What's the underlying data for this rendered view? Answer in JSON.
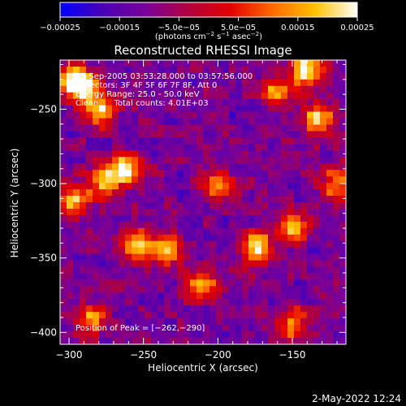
{
  "chart_data": {
    "type": "heatmap",
    "title": "Reconstructed RHESSI Image",
    "xlabel": "Heliocentric X (arcsec)",
    "ylabel": "Heliocentric Y (arcsec)",
    "xlim": [
      -306,
      -114
    ],
    "ylim": [
      -408,
      -217
    ],
    "xticks": [
      -300,
      -250,
      -200,
      -150
    ],
    "xtick_labels": [
      "−300",
      "−250",
      "−200",
      "−150"
    ],
    "yticks": [
      -250,
      -300,
      -350,
      -400
    ],
    "ytick_labels": [
      "−250",
      "−300",
      "−350",
      "−400"
    ],
    "colorbar": {
      "range": [
        -0.00025,
        0.00025
      ],
      "ticks": [
        -0.00025,
        -0.00015,
        -5e-05,
        5e-05,
        0.00015,
        0.00025
      ],
      "tick_labels": [
        "−0.00025",
        "−0.00015",
        "−5.0e−05",
        "5.0e−05",
        "0.00015",
        "0.00025"
      ],
      "unit_prefix": "(photons cm",
      "unit_sup1": "−2",
      "unit_mid": " s",
      "unit_sup2": "−1",
      "unit_mid2": " asec",
      "unit_sup3": "−2",
      "unit_suffix": ")",
      "colors": [
        "#0000ff",
        "#4b00b4",
        "#78009a",
        "#b0003f",
        "#e20000",
        "#ff6a00",
        "#ffc000",
        "#ffffff"
      ]
    },
    "annotations": [
      "13-Sep-2005 03:53:28.000 to 03:57:56.000",
      "Detectors: 3F 4F 5F 6F 7F 8F, Att 0",
      "Energy Range: 25.0 - 50.0 keV",
      "Clean      Total counts: 4.01E+03"
    ],
    "peak_label": "Position of Peak = [−262,−290]",
    "peak_position": [
      -262,
      -290
    ],
    "sources": [
      {
        "x": -290,
        "y": -236,
        "intensity": 0.00024
      },
      {
        "x": -279,
        "y": -252,
        "intensity": 0.00018
      },
      {
        "x": -262,
        "y": -290,
        "intensity": 0.00025
      },
      {
        "x": -276,
        "y": -298,
        "intensity": 0.00017
      },
      {
        "x": -296,
        "y": -312,
        "intensity": 0.00016
      },
      {
        "x": -300,
        "y": -230,
        "intensity": 0.0002
      },
      {
        "x": -235,
        "y": -345,
        "intensity": 0.00022
      },
      {
        "x": -255,
        "y": -340,
        "intensity": 0.00018
      },
      {
        "x": -210,
        "y": -368,
        "intensity": 0.00014
      },
      {
        "x": -175,
        "y": -343,
        "intensity": 0.00021
      },
      {
        "x": -150,
        "y": -330,
        "intensity": 0.00018
      },
      {
        "x": -140,
        "y": -223,
        "intensity": 0.00023
      },
      {
        "x": -133,
        "y": -255,
        "intensity": 0.00017
      },
      {
        "x": -120,
        "y": -300,
        "intensity": 0.00016
      },
      {
        "x": -150,
        "y": -394,
        "intensity": 0.00015
      },
      {
        "x": -285,
        "y": -392,
        "intensity": 0.00013
      },
      {
        "x": -160,
        "y": -238,
        "intensity": 0.00012
      },
      {
        "x": -200,
        "y": -300,
        "intensity": 0.0001
      }
    ],
    "grid": false
  },
  "footer": {
    "timestamp": "2-May-2022 12:24"
  }
}
